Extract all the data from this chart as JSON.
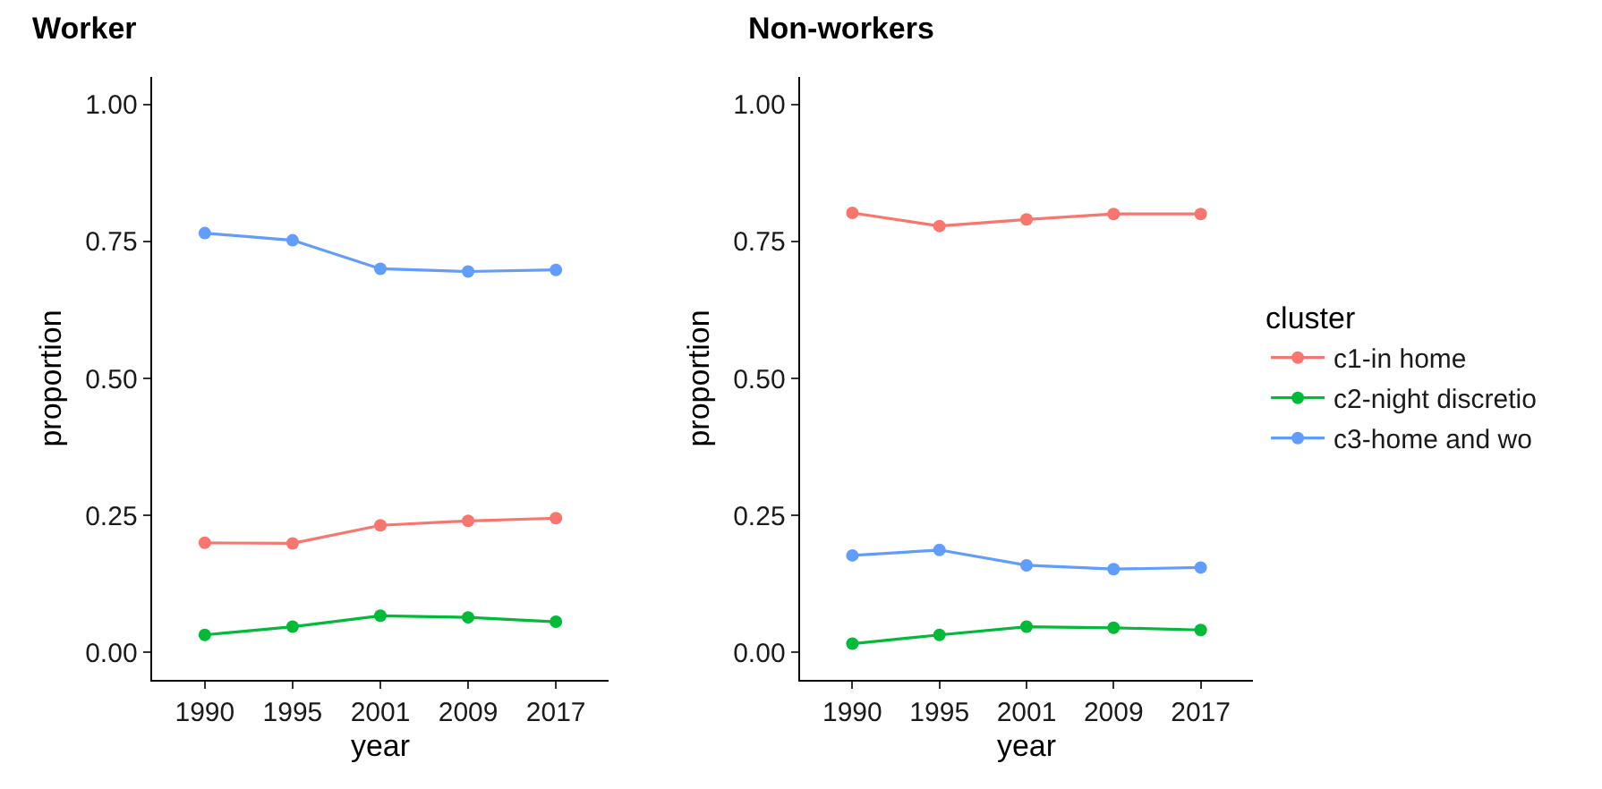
{
  "chart_data": [
    {
      "type": "line",
      "title": "Worker",
      "xlabel": "year",
      "ylabel": "proportion",
      "categories": [
        "1990",
        "1995",
        "2001",
        "2009",
        "2017"
      ],
      "series": [
        {
          "color": "#f8766d",
          "values": [
            0.2,
            0.199,
            0.232,
            0.24,
            0.245
          ]
        },
        {
          "color": "#00ba38",
          "values": [
            0.032,
            0.047,
            0.067,
            0.064,
            0.056
          ]
        },
        {
          "color": "#619cff",
          "values": [
            0.765,
            0.752,
            0.7,
            0.695,
            0.698
          ]
        }
      ],
      "ylim": [
        -0.05,
        1.05
      ],
      "yticks": [
        {
          "value": 0,
          "label": "0.00"
        },
        {
          "value": 0.25,
          "label": "0.25"
        },
        {
          "value": 0.5,
          "label": "0.50"
        },
        {
          "value": 0.75,
          "label": "0.75"
        },
        {
          "value": 1,
          "label": "1.00"
        }
      ],
      "grid": false,
      "legend": false,
      "marker": "circle",
      "line_style": "solid"
    },
    {
      "type": "line",
      "title": "Non-workers",
      "xlabel": "year",
      "ylabel": "proportion",
      "legend_title": "cluster",
      "categories": [
        "1990",
        "1995",
        "2001",
        "2009",
        "2017"
      ],
      "series": [
        {
          "name": "c1-in home",
          "color": "#f8766d",
          "values": [
            0.802,
            0.778,
            0.79,
            0.8,
            0.8
          ]
        },
        {
          "name": "c2-night discretio",
          "color": "#00ba38",
          "values": [
            0.016,
            0.032,
            0.047,
            0.045,
            0.041
          ]
        },
        {
          "name": "c3-home and wo",
          "color": "#619cff",
          "values": [
            0.177,
            0.187,
            0.159,
            0.152,
            0.155
          ]
        }
      ],
      "ylim": [
        -0.05,
        1.05
      ],
      "yticks": [
        {
          "value": 0,
          "label": "0.00"
        },
        {
          "value": 0.25,
          "label": "0.25"
        },
        {
          "value": 0.5,
          "label": "0.50"
        },
        {
          "value": 0.75,
          "label": "0.75"
        },
        {
          "value": 1,
          "label": "1.00"
        }
      ],
      "grid": false,
      "legend": "right",
      "marker": "circle",
      "line_style": "solid"
    }
  ]
}
